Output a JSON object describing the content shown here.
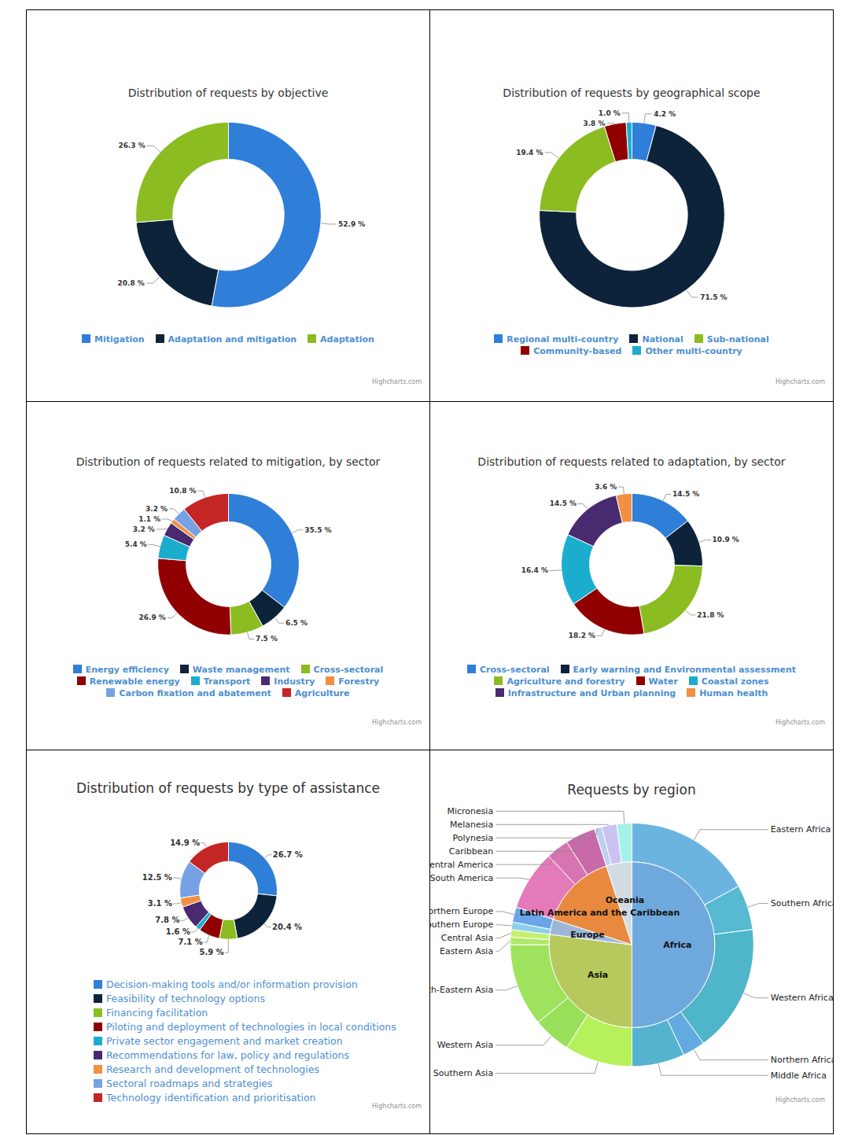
{
  "chart_data": [
    {
      "type": "donut",
      "title": "Distribution of requests by objective",
      "categories": [
        "Mitigation",
        "Adaptation and mitigation",
        "Adaptation"
      ],
      "values": [
        52.9,
        20.8,
        26.3
      ],
      "value_labels": [
        "52.9 %",
        "20.8 %",
        "26.3 %"
      ],
      "colors": [
        "#2f7ed8",
        "#0d233a",
        "#8bbc21"
      ],
      "data_labels": true,
      "legend": "bottom",
      "credit": "Highcharts.com"
    },
    {
      "type": "donut",
      "title": "Distribution of requests by geographical scope",
      "categories": [
        "Regional multi-country",
        "National",
        "Sub-national",
        "Community-based",
        "Other multi-country"
      ],
      "values": [
        4.2,
        71.5,
        19.4,
        3.8,
        1.0
      ],
      "value_labels": [
        "4.2 %",
        "71.5 %",
        "19.4 %",
        "3.8 %",
        "1.0 %"
      ],
      "colors": [
        "#2f7ed8",
        "#0d233a",
        "#8bbc21",
        "#910000",
        "#1aadce"
      ],
      "data_labels": true,
      "legend": "bottom",
      "credit": "Highcharts.com"
    },
    {
      "type": "donut",
      "title": "Distribution of requests related to mitigation, by sector",
      "categories": [
        "Energy efficiency",
        "Waste management",
        "Cross-sectoral",
        "Renewable energy",
        "Transport",
        "Industry",
        "Forestry",
        "Carbon fixation and abatement",
        "Agriculture"
      ],
      "values": [
        35.5,
        6.5,
        7.5,
        26.9,
        5.4,
        3.2,
        1.1,
        3.2,
        10.8
      ],
      "value_labels": [
        "35.5 %",
        "6.5 %",
        "7.5 %",
        "26.9 %",
        "5.4 %",
        "3.2 %",
        "1.1 %",
        "3.2 %",
        "10.8 %"
      ],
      "colors": [
        "#2f7ed8",
        "#0d233a",
        "#8bbc21",
        "#910000",
        "#1aadce",
        "#492970",
        "#f28f43",
        "#77a1e5",
        "#c42525"
      ],
      "data_labels": true,
      "legend": "bottom",
      "credit": "Highcharts.com"
    },
    {
      "type": "donut",
      "title": "Distribution of requests related to adaptation, by sector",
      "categories": [
        "Cross-sectoral",
        "Early warning and Environmental assessment",
        "Agriculture and forestry",
        "Water",
        "Coastal zones",
        "Infrastructure and Urban planning",
        "Human health"
      ],
      "values": [
        14.5,
        10.9,
        21.8,
        18.2,
        16.4,
        14.5,
        3.6
      ],
      "value_labels": [
        "14.5 %",
        "10.9 %",
        "21.8 %",
        "18.2 %",
        "16.4 %",
        "14.5 %",
        "3.6 %"
      ],
      "colors": [
        "#2f7ed8",
        "#0d233a",
        "#8bbc21",
        "#910000",
        "#1aadce",
        "#492970",
        "#f28f43"
      ],
      "data_labels": true,
      "legend": "bottom",
      "credit": "Highcharts.com"
    },
    {
      "type": "donut",
      "title": "Distribution of requests by type of assistance",
      "categories": [
        "Decision-making tools and/or information provision",
        "Feasibility of technology options",
        "Financing facilitation",
        "Piloting and deployment of technologies in local conditions",
        "Private sector engagement and market creation",
        "Recommendations for law, policy and regulations",
        "Research and development of technologies",
        "Sectoral roadmaps and strategies",
        "Technology identification and prioritisation"
      ],
      "values": [
        26.7,
        20.4,
        5.9,
        7.1,
        1.6,
        7.8,
        3.1,
        12.5,
        14.9
      ],
      "value_labels": [
        "26.7 %",
        "20.4 %",
        "5.9 %",
        "7.1 %",
        "1.6 %",
        "7.8 %",
        "3.1 %",
        "12.5 %",
        "14.9 %"
      ],
      "colors": [
        "#2f7ed8",
        "#0d233a",
        "#8bbc21",
        "#910000",
        "#1aadce",
        "#492970",
        "#f28f43",
        "#77a1e5",
        "#c42525"
      ],
      "data_labels": true,
      "legend": "bottom",
      "credit": "Highcharts.com"
    },
    {
      "type": "sunburst",
      "title": "Requests by region",
      "series": [
        {
          "name": "Africa",
          "color": "#6fa8dc",
          "categories": [
            "Eastern Africa",
            "Southern Africa",
            "Western Africa",
            "Northern Africa",
            "Middle Africa"
          ],
          "values": [
            17,
            6,
            17,
            3,
            7
          ],
          "colors": [
            "#6cb4e0",
            "#58b9d3",
            "#4fb5c9",
            "#62abe0",
            "#55b3cf"
          ]
        },
        {
          "name": "Asia",
          "color": "#b7c95c",
          "categories": [
            "Southern Asia",
            "Western Asia",
            "South-Eastern Asia",
            "Eastern Asia",
            "Central Asia"
          ],
          "values": [
            9,
            5,
            11,
            1,
            1
          ],
          "colors": [
            "#b6f05a",
            "#98e05a",
            "#9fe25e",
            "#b0e86a",
            "#c4f070"
          ]
        },
        {
          "name": "Europe",
          "color": "#9db6d8",
          "categories": [
            "Southern Europe",
            "Northern Europe"
          ],
          "values": [
            1,
            2
          ],
          "colors": [
            "#8cd0ee",
            "#6aa5e8"
          ]
        },
        {
          "name": "Latin America and the Caribbean",
          "color": "#e8893f",
          "categories": [
            "South America",
            "Central America",
            "Caribbean"
          ],
          "values": [
            8,
            3,
            4
          ],
          "colors": [
            "#e57ab8",
            "#d874b2",
            "#c86aa8"
          ]
        },
        {
          "name": "Oceania",
          "color": "#d3dbe3",
          "categories": [
            "Polynesia",
            "Melanesia",
            "Micronesia"
          ],
          "values": [
            1,
            2,
            2
          ],
          "colors": [
            "#bcd0f4",
            "#c9c2f2",
            "#a6f2ea"
          ]
        }
      ],
      "tick_labels": false,
      "credit": "Highcharts.com"
    }
  ]
}
